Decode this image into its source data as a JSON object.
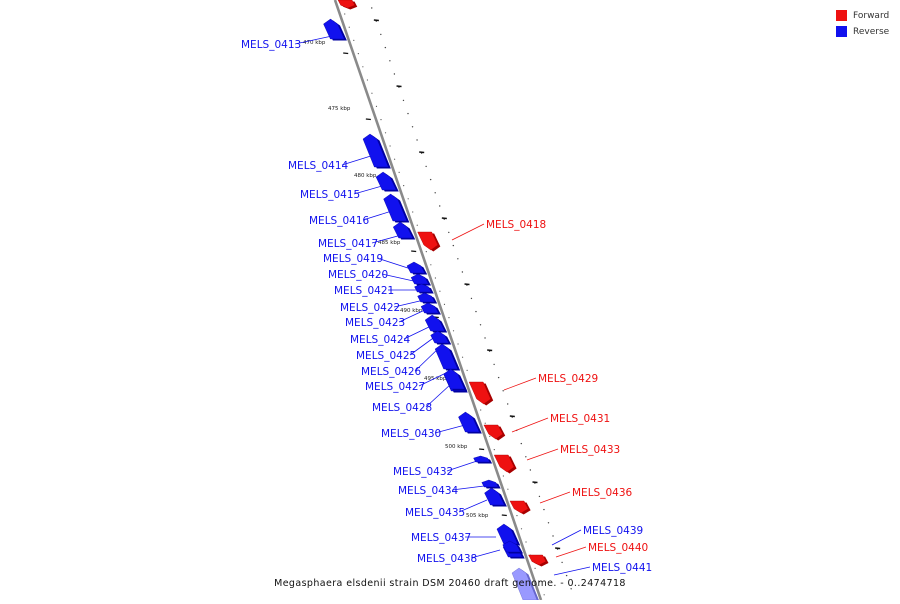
{
  "colors": {
    "forward": "#ee1111",
    "forward_dark": "#a80000",
    "reverse": "#1111ee",
    "reverse_dark": "#0000a0",
    "reverse_faded": "#9999ff",
    "backbone": "#8a8a8a"
  },
  "legend": {
    "forward_label": "Forward",
    "reverse_label": "Reverse"
  },
  "caption": "Megasphaera elsdenii strain DSM 20460 draft genome. - 0..2474718",
  "kbp_labels": [
    "470 kbp",
    "475 kbp",
    "480 kbp",
    "485 kbp",
    "490 kbp",
    "495 kbp",
    "500 kbp",
    "505 kbp"
  ],
  "genes": [
    {
      "id": "MELS_0412",
      "strand": "forward",
      "label": ""
    },
    {
      "id": "MELS_0413",
      "strand": "reverse",
      "label": "MELS_0413"
    },
    {
      "id": "MELS_0414",
      "strand": "reverse",
      "label": "MELS_0414"
    },
    {
      "id": "MELS_0415",
      "strand": "reverse",
      "label": "MELS_0415"
    },
    {
      "id": "MELS_0416",
      "strand": "reverse",
      "label": "MELS_0416"
    },
    {
      "id": "MELS_0417",
      "strand": "reverse",
      "label": "MELS_0417"
    },
    {
      "id": "MELS_0418",
      "strand": "forward",
      "label": "MELS_0418"
    },
    {
      "id": "MELS_0419",
      "strand": "reverse",
      "label": "MELS_0419"
    },
    {
      "id": "MELS_0420",
      "strand": "reverse",
      "label": "MELS_0420"
    },
    {
      "id": "MELS_0421",
      "strand": "reverse",
      "label": "MELS_0421"
    },
    {
      "id": "MELS_0422",
      "strand": "reverse",
      "label": "MELS_0422"
    },
    {
      "id": "MELS_0423",
      "strand": "reverse",
      "label": "MELS_0423"
    },
    {
      "id": "MELS_0424",
      "strand": "reverse",
      "label": "MELS_0424"
    },
    {
      "id": "MELS_0425",
      "strand": "reverse",
      "label": "MELS_0425"
    },
    {
      "id": "MELS_0426",
      "strand": "reverse",
      "label": "MELS_0426"
    },
    {
      "id": "MELS_0427",
      "strand": "reverse",
      "label": "MELS_0427"
    },
    {
      "id": "MELS_0428",
      "strand": "reverse",
      "label": "MELS_0428"
    },
    {
      "id": "MELS_0429",
      "strand": "forward",
      "label": "MELS_0429"
    },
    {
      "id": "MELS_0430",
      "strand": "reverse",
      "label": "MELS_0430"
    },
    {
      "id": "MELS_0431",
      "strand": "forward",
      "label": "MELS_0431"
    },
    {
      "id": "MELS_0432",
      "strand": "reverse",
      "label": "MELS_0432"
    },
    {
      "id": "MELS_0433",
      "strand": "forward",
      "label": "MELS_0433"
    },
    {
      "id": "MELS_0434",
      "strand": "reverse",
      "label": "MELS_0434"
    },
    {
      "id": "MELS_0435",
      "strand": "reverse",
      "label": "MELS_0435"
    },
    {
      "id": "MELS_0436",
      "strand": "forward",
      "label": "MELS_0436"
    },
    {
      "id": "MELS_0437",
      "strand": "reverse",
      "label": "MELS_0437"
    },
    {
      "id": "MELS_0438",
      "strand": "reverse",
      "label": "MELS_0438"
    },
    {
      "id": "MELS_0439",
      "strand": "reverse",
      "label": "MELS_0439"
    },
    {
      "id": "MELS_0440",
      "strand": "forward",
      "label": "MELS_0440"
    },
    {
      "id": "MELS_0441",
      "strand": "reverse",
      "label": "MELS_0441"
    }
  ]
}
